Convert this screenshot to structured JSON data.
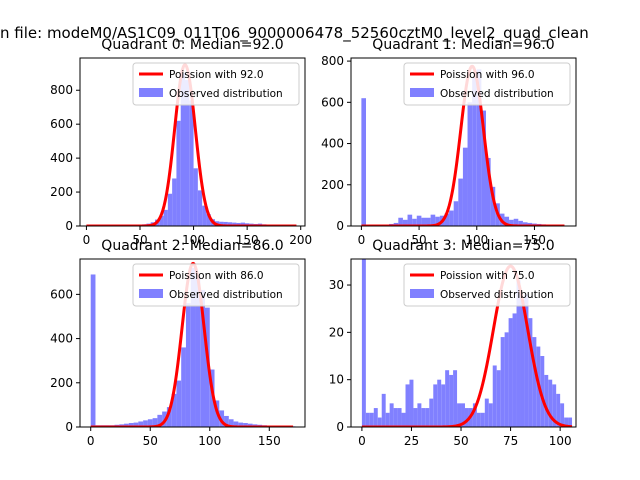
{
  "suptitle": "n file: modeM0/AS1C09_011T06_9000006478_52560cztM0_level2_quad_clean",
  "colors": {
    "hist": "#8080ff",
    "poisson": "#ff0000",
    "axis": "#000000"
  },
  "chart_data": [
    {
      "type": "bar",
      "title": "Quadrant 0: Median=92.0",
      "median": 92.0,
      "xlim": [
        -6,
        204
      ],
      "ylim": [
        0,
        990
      ],
      "xticks": [
        0,
        50,
        100,
        150,
        200
      ],
      "yticks": [
        0,
        200,
        400,
        600,
        800
      ],
      "bin_width": 4,
      "bins": [
        {
          "x": 0,
          "y": 6
        },
        {
          "x": 4,
          "y": 6
        },
        {
          "x": 8,
          "y": 6
        },
        {
          "x": 12,
          "y": 6
        },
        {
          "x": 16,
          "y": 6
        },
        {
          "x": 20,
          "y": 6
        },
        {
          "x": 24,
          "y": 6
        },
        {
          "x": 28,
          "y": 6
        },
        {
          "x": 32,
          "y": 6
        },
        {
          "x": 36,
          "y": 6
        },
        {
          "x": 40,
          "y": 6
        },
        {
          "x": 44,
          "y": 6
        },
        {
          "x": 48,
          "y": 8
        },
        {
          "x": 52,
          "y": 10
        },
        {
          "x": 56,
          "y": 14
        },
        {
          "x": 60,
          "y": 22
        },
        {
          "x": 64,
          "y": 38
        },
        {
          "x": 68,
          "y": 60
        },
        {
          "x": 72,
          "y": 95
        },
        {
          "x": 76,
          "y": 190
        },
        {
          "x": 80,
          "y": 280
        },
        {
          "x": 84,
          "y": 620
        },
        {
          "x": 88,
          "y": 900
        },
        {
          "x": 92,
          "y": 860
        },
        {
          "x": 96,
          "y": 740
        },
        {
          "x": 100,
          "y": 340
        },
        {
          "x": 104,
          "y": 210
        },
        {
          "x": 108,
          "y": 120
        },
        {
          "x": 112,
          "y": 70
        },
        {
          "x": 116,
          "y": 40
        },
        {
          "x": 120,
          "y": 28
        },
        {
          "x": 124,
          "y": 25
        },
        {
          "x": 128,
          "y": 24
        },
        {
          "x": 132,
          "y": 22
        },
        {
          "x": 136,
          "y": 20
        },
        {
          "x": 140,
          "y": 18
        },
        {
          "x": 144,
          "y": 20
        },
        {
          "x": 148,
          "y": 16
        },
        {
          "x": 152,
          "y": 14
        },
        {
          "x": 156,
          "y": 12
        },
        {
          "x": 160,
          "y": 14
        },
        {
          "x": 164,
          "y": 10
        },
        {
          "x": 168,
          "y": 8
        },
        {
          "x": 172,
          "y": 6
        },
        {
          "x": 176,
          "y": 6
        },
        {
          "x": 180,
          "y": 4
        },
        {
          "x": 184,
          "y": 4
        },
        {
          "x": 188,
          "y": 4
        },
        {
          "x": 192,
          "y": 4
        }
      ],
      "poisson": {
        "mean": 92.0,
        "peak": 950,
        "xmin": 0,
        "xmax": 196
      },
      "legend": {
        "line_label": "Poission with 92.0",
        "bar_label": "Observed distribution",
        "loc": "upper right"
      }
    },
    {
      "type": "bar",
      "title": "Quadrant 1: Median=96.0",
      "median": 96.0,
      "xlim": [
        -9,
        186
      ],
      "ylim": [
        0,
        815
      ],
      "xticks": [
        0,
        50,
        100,
        150
      ],
      "yticks": [
        0,
        200,
        400,
        600,
        800
      ],
      "bin_width": 4,
      "bins": [
        {
          "x": 0,
          "y": 620
        },
        {
          "x": 4,
          "y": 5
        },
        {
          "x": 8,
          "y": 5
        },
        {
          "x": 12,
          "y": 5
        },
        {
          "x": 16,
          "y": 5
        },
        {
          "x": 20,
          "y": 5
        },
        {
          "x": 24,
          "y": 10
        },
        {
          "x": 28,
          "y": 15
        },
        {
          "x": 32,
          "y": 40
        },
        {
          "x": 36,
          "y": 30
        },
        {
          "x": 40,
          "y": 55
        },
        {
          "x": 44,
          "y": 35
        },
        {
          "x": 48,
          "y": 50
        },
        {
          "x": 52,
          "y": 40
        },
        {
          "x": 56,
          "y": 40
        },
        {
          "x": 60,
          "y": 55
        },
        {
          "x": 64,
          "y": 45
        },
        {
          "x": 68,
          "y": 50
        },
        {
          "x": 72,
          "y": 60
        },
        {
          "x": 76,
          "y": 75
        },
        {
          "x": 80,
          "y": 120
        },
        {
          "x": 84,
          "y": 230
        },
        {
          "x": 88,
          "y": 380
        },
        {
          "x": 92,
          "y": 600
        },
        {
          "x": 96,
          "y": 720
        },
        {
          "x": 100,
          "y": 760
        },
        {
          "x": 104,
          "y": 560
        },
        {
          "x": 108,
          "y": 330
        },
        {
          "x": 112,
          "y": 190
        },
        {
          "x": 116,
          "y": 110
        },
        {
          "x": 120,
          "y": 60
        },
        {
          "x": 124,
          "y": 45
        },
        {
          "x": 128,
          "y": 30
        },
        {
          "x": 132,
          "y": 35
        },
        {
          "x": 136,
          "y": 25
        },
        {
          "x": 140,
          "y": 18
        },
        {
          "x": 144,
          "y": 15
        },
        {
          "x": 148,
          "y": 12
        },
        {
          "x": 152,
          "y": 10
        },
        {
          "x": 156,
          "y": 8
        },
        {
          "x": 160,
          "y": 6
        },
        {
          "x": 164,
          "y": 5
        },
        {
          "x": 168,
          "y": 5
        },
        {
          "x": 172,
          "y": 4
        }
      ],
      "poisson": {
        "mean": 96.0,
        "peak": 775,
        "xmin": 0,
        "xmax": 176
      },
      "legend": {
        "line_label": "Poission with 96.0",
        "bar_label": "Observed distribution",
        "loc": "upper right"
      }
    },
    {
      "type": "bar",
      "title": "Quadrant 2: Median=86.0",
      "median": 86.0,
      "xlim": [
        -9,
        180
      ],
      "ylim": [
        0,
        760
      ],
      "xticks": [
        0,
        50,
        100,
        150
      ],
      "yticks": [
        0,
        200,
        400,
        600
      ],
      "bin_width": 4,
      "bins": [
        {
          "x": 0,
          "y": 690
        },
        {
          "x": 4,
          "y": 8
        },
        {
          "x": 8,
          "y": 8
        },
        {
          "x": 12,
          "y": 8
        },
        {
          "x": 16,
          "y": 8
        },
        {
          "x": 20,
          "y": 10
        },
        {
          "x": 24,
          "y": 12
        },
        {
          "x": 28,
          "y": 15
        },
        {
          "x": 32,
          "y": 18
        },
        {
          "x": 36,
          "y": 20
        },
        {
          "x": 40,
          "y": 25
        },
        {
          "x": 44,
          "y": 30
        },
        {
          "x": 48,
          "y": 35
        },
        {
          "x": 52,
          "y": 40
        },
        {
          "x": 56,
          "y": 55
        },
        {
          "x": 60,
          "y": 70
        },
        {
          "x": 64,
          "y": 90
        },
        {
          "x": 68,
          "y": 150
        },
        {
          "x": 72,
          "y": 210
        },
        {
          "x": 76,
          "y": 360
        },
        {
          "x": 80,
          "y": 560
        },
        {
          "x": 84,
          "y": 720
        },
        {
          "x": 88,
          "y": 680
        },
        {
          "x": 92,
          "y": 620
        },
        {
          "x": 96,
          "y": 540
        },
        {
          "x": 100,
          "y": 260
        },
        {
          "x": 104,
          "y": 120
        },
        {
          "x": 108,
          "y": 75
        },
        {
          "x": 112,
          "y": 50
        },
        {
          "x": 116,
          "y": 35
        },
        {
          "x": 120,
          "y": 25
        },
        {
          "x": 124,
          "y": 20
        },
        {
          "x": 128,
          "y": 18
        },
        {
          "x": 132,
          "y": 15
        },
        {
          "x": 136,
          "y": 12
        },
        {
          "x": 140,
          "y": 10
        },
        {
          "x": 144,
          "y": 8
        },
        {
          "x": 148,
          "y": 6
        },
        {
          "x": 152,
          "y": 5
        },
        {
          "x": 156,
          "y": 5
        },
        {
          "x": 160,
          "y": 4
        },
        {
          "x": 164,
          "y": 4
        },
        {
          "x": 168,
          "y": 3
        }
      ],
      "poisson": {
        "mean": 86.0,
        "peak": 740,
        "xmin": 0,
        "xmax": 170
      },
      "legend": {
        "line_label": "Poission with 86.0",
        "bar_label": "Observed distribution",
        "loc": "upper right"
      }
    },
    {
      "type": "bar",
      "title": "Quadrant 3: Median=75.0",
      "median": 75.0,
      "xlim": [
        -5.5,
        108
      ],
      "ylim": [
        0,
        35.5
      ],
      "xticks": [
        0,
        25,
        50,
        75,
        100
      ],
      "yticks": [
        0,
        10,
        20,
        30
      ],
      "bin_width": 2,
      "bins": [
        {
          "x": 0,
          "y": 35.5
        },
        {
          "x": 2,
          "y": 3
        },
        {
          "x": 4,
          "y": 3
        },
        {
          "x": 6,
          "y": 4
        },
        {
          "x": 8,
          "y": 2
        },
        {
          "x": 10,
          "y": 7
        },
        {
          "x": 12,
          "y": 3
        },
        {
          "x": 14,
          "y": 5
        },
        {
          "x": 16,
          "y": 4
        },
        {
          "x": 18,
          "y": 4
        },
        {
          "x": 20,
          "y": 3
        },
        {
          "x": 22,
          "y": 9
        },
        {
          "x": 24,
          "y": 10
        },
        {
          "x": 26,
          "y": 4
        },
        {
          "x": 28,
          "y": 5
        },
        {
          "x": 30,
          "y": 4
        },
        {
          "x": 32,
          "y": 4
        },
        {
          "x": 34,
          "y": 6
        },
        {
          "x": 36,
          "y": 9
        },
        {
          "x": 38,
          "y": 10
        },
        {
          "x": 40,
          "y": 9
        },
        {
          "x": 42,
          "y": 12
        },
        {
          "x": 44,
          "y": 11
        },
        {
          "x": 46,
          "y": 12
        },
        {
          "x": 48,
          "y": 5
        },
        {
          "x": 50,
          "y": 5
        },
        {
          "x": 52,
          "y": 4
        },
        {
          "x": 54,
          "y": 4
        },
        {
          "x": 56,
          "y": 5
        },
        {
          "x": 58,
          "y": 3
        },
        {
          "x": 60,
          "y": 3
        },
        {
          "x": 62,
          "y": 6
        },
        {
          "x": 64,
          "y": 5
        },
        {
          "x": 66,
          "y": 13
        },
        {
          "x": 68,
          "y": 12
        },
        {
          "x": 70,
          "y": 19
        },
        {
          "x": 72,
          "y": 20
        },
        {
          "x": 74,
          "y": 23
        },
        {
          "x": 76,
          "y": 24
        },
        {
          "x": 78,
          "y": 31
        },
        {
          "x": 80,
          "y": 27
        },
        {
          "x": 82,
          "y": 28
        },
        {
          "x": 84,
          "y": 23
        },
        {
          "x": 86,
          "y": 19
        },
        {
          "x": 88,
          "y": 17
        },
        {
          "x": 90,
          "y": 15
        },
        {
          "x": 92,
          "y": 11
        },
        {
          "x": 94,
          "y": 10
        },
        {
          "x": 96,
          "y": 9
        },
        {
          "x": 98,
          "y": 7
        },
        {
          "x": 100,
          "y": 5
        },
        {
          "x": 102,
          "y": 2
        },
        {
          "x": 104,
          "y": 2
        }
      ],
      "poisson": {
        "mean": 75.0,
        "peak": 34,
        "xmin": 0,
        "xmax": 106
      },
      "legend": {
        "line_label": "Poission with 75.0",
        "bar_label": "Observed distribution",
        "loc": "upper right"
      }
    }
  ]
}
